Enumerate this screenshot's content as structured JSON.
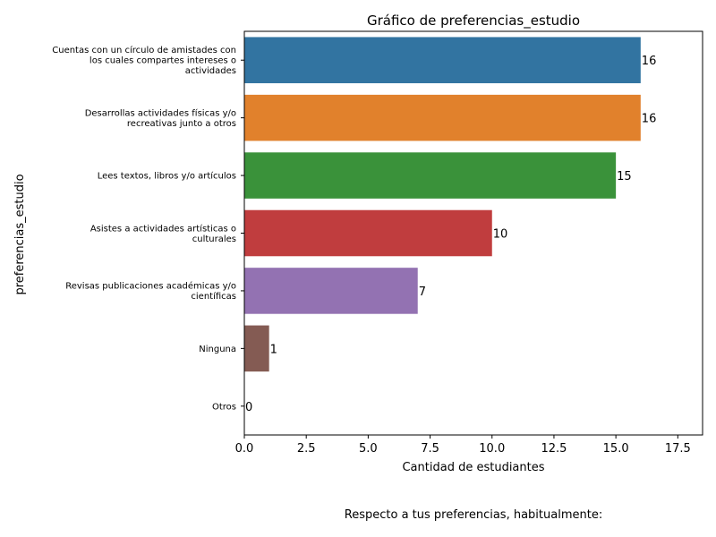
{
  "chart_data": {
    "type": "bar",
    "orientation": "horizontal",
    "title": "Gráfico de preferencias_estudio",
    "xlabel": "Cantidad de estudiantes",
    "ylabel": "preferencias_estudio",
    "caption": "Respecto a tus preferencias, habitualmente:",
    "xlim": [
      0,
      18.5
    ],
    "xticks": [
      0,
      2.5,
      5,
      7.5,
      10,
      12.5,
      15,
      17.5
    ],
    "xtick_labels": [
      "0.0",
      "2.5",
      "5.0",
      "7.5",
      "10.0",
      "12.5",
      "15.0",
      "17.5"
    ],
    "grid": false,
    "categories": [
      [
        "Cuentas con un círculo de amistades con",
        "los cuales compartes intereses o",
        "actividades"
      ],
      [
        "Desarrollas actividades físicas y/o",
        "recreativas junto a otros"
      ],
      [
        "Lees textos, libros y/o artículos"
      ],
      [
        "Asistes a actividades artísticas o",
        "culturales"
      ],
      [
        "Revisas publicaciones académicas y/o",
        "científicas"
      ],
      [
        "Ninguna"
      ],
      [
        "Otros"
      ]
    ],
    "values": [
      16,
      16,
      15,
      10,
      7,
      1,
      0
    ],
    "colors": [
      "#3274a1",
      "#e1812c",
      "#3a923a",
      "#c03d3e",
      "#9372b2",
      "#845b53",
      "#d684bd"
    ]
  }
}
